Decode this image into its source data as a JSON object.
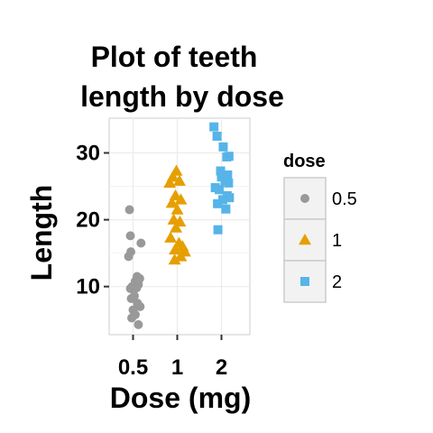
{
  "chart_data": {
    "type": "scatter",
    "title_lines": [
      "Plot of teeth",
      "length by dose"
    ],
    "xlabel": "Dose (mg)",
    "ylabel": "Length",
    "x_categories": [
      "0.5",
      "1",
      "2"
    ],
    "y_ticks": [
      10,
      20,
      30
    ],
    "ylim": [
      2.8,
      35.2
    ],
    "grid": true,
    "legend": {
      "title": "dose",
      "position": "right",
      "entries": [
        {
          "label": "0.5",
          "color": "#999999",
          "shape": "circle"
        },
        {
          "label": "1",
          "color": "#E69F00",
          "shape": "triangle"
        },
        {
          "label": "2",
          "color": "#56B4E9",
          "shape": "square"
        }
      ]
    },
    "series": [
      {
        "name": "0.5",
        "color": "#999999",
        "shape": "circle",
        "points": [
          {
            "x": 0.5,
            "y": 21.5,
            "jitter": -0.08
          },
          {
            "x": 0.5,
            "y": 17.6,
            "jitter": -0.06
          },
          {
            "x": 0.5,
            "y": 16.5,
            "jitter": 0.18
          },
          {
            "x": 0.5,
            "y": 15.2,
            "jitter": -0.05
          },
          {
            "x": 0.5,
            "y": 14.5,
            "jitter": -0.1
          },
          {
            "x": 0.5,
            "y": 11.5,
            "jitter": 0.09
          },
          {
            "x": 0.5,
            "y": 11.2,
            "jitter": 0.15
          },
          {
            "x": 0.5,
            "y": 10.8,
            "jitter": 0.05
          },
          {
            "x": 0.5,
            "y": 10.3,
            "jitter": 0.12
          },
          {
            "x": 0.5,
            "y": 10.0,
            "jitter": -0.02
          },
          {
            "x": 0.5,
            "y": 9.8,
            "jitter": 0.08
          },
          {
            "x": 0.5,
            "y": 9.7,
            "jitter": -0.06
          },
          {
            "x": 0.5,
            "y": 8.6,
            "jitter": 0.03
          },
          {
            "x": 0.5,
            "y": 8.2,
            "jitter": -0.04
          },
          {
            "x": 0.5,
            "y": 7.5,
            "jitter": 0.1
          },
          {
            "x": 0.5,
            "y": 7.0,
            "jitter": 0.16
          },
          {
            "x": 0.5,
            "y": 6.5,
            "jitter": 0.0
          },
          {
            "x": 0.5,
            "y": 5.8,
            "jitter": 0.05
          },
          {
            "x": 0.5,
            "y": 5.3,
            "jitter": -0.03
          },
          {
            "x": 0.5,
            "y": 4.3,
            "jitter": 0.12
          }
        ]
      },
      {
        "name": "1",
        "color": "#E69F00",
        "shape": "triangle",
        "points": [
          {
            "x": 1,
            "y": 27.3,
            "jitter": -0.02
          },
          {
            "x": 1,
            "y": 26.4,
            "jitter": -0.1
          },
          {
            "x": 1,
            "y": 25.8,
            "jitter": 0.05
          },
          {
            "x": 1,
            "y": 25.5,
            "jitter": -0.17
          },
          {
            "x": 1,
            "y": 23.6,
            "jitter": -0.04
          },
          {
            "x": 1,
            "y": 23.0,
            "jitter": 0.08
          },
          {
            "x": 1,
            "y": 22.5,
            "jitter": -0.12
          },
          {
            "x": 1,
            "y": 21.5,
            "jitter": 0.0
          },
          {
            "x": 1,
            "y": 20.0,
            "jitter": -0.08
          },
          {
            "x": 1,
            "y": 19.7,
            "jitter": 0.06
          },
          {
            "x": 1,
            "y": 18.8,
            "jitter": -0.03
          },
          {
            "x": 1,
            "y": 17.3,
            "jitter": -0.15
          },
          {
            "x": 1,
            "y": 16.5,
            "jitter": 0.04
          },
          {
            "x": 1,
            "y": 16.0,
            "jitter": 0.12
          },
          {
            "x": 1,
            "y": 15.5,
            "jitter": -0.05
          },
          {
            "x": 1,
            "y": 15.2,
            "jitter": 0.17
          },
          {
            "x": 1,
            "y": 14.5,
            "jitter": 0.08
          },
          {
            "x": 1,
            "y": 14.0,
            "jitter": -0.06
          }
        ]
      },
      {
        "name": "2",
        "color": "#56B4E9",
        "shape": "square",
        "points": [
          {
            "x": 2,
            "y": 33.9,
            "jitter": -0.17
          },
          {
            "x": 2,
            "y": 32.5,
            "jitter": -0.1
          },
          {
            "x": 2,
            "y": 30.9,
            "jitter": 0.04
          },
          {
            "x": 2,
            "y": 29.5,
            "jitter": 0.17
          },
          {
            "x": 2,
            "y": 29.4,
            "jitter": 0.12
          },
          {
            "x": 2,
            "y": 27.3,
            "jitter": -0.02
          },
          {
            "x": 2,
            "y": 26.7,
            "jitter": 0.14
          },
          {
            "x": 2,
            "y": 26.4,
            "jitter": 0.0
          },
          {
            "x": 2,
            "y": 25.8,
            "jitter": 0.08
          },
          {
            "x": 2,
            "y": 25.5,
            "jitter": 0.16
          },
          {
            "x": 2,
            "y": 24.8,
            "jitter": -0.14
          },
          {
            "x": 2,
            "y": 24.5,
            "jitter": -0.05
          },
          {
            "x": 2,
            "y": 23.6,
            "jitter": 0.13
          },
          {
            "x": 2,
            "y": 23.3,
            "jitter": 0.18
          },
          {
            "x": 2,
            "y": 23.0,
            "jitter": 0.03
          },
          {
            "x": 2,
            "y": 22.4,
            "jitter": -0.09
          },
          {
            "x": 2,
            "y": 21.6,
            "jitter": 0.1
          },
          {
            "x": 2,
            "y": 18.5,
            "jitter": -0.08
          }
        ]
      }
    ]
  }
}
